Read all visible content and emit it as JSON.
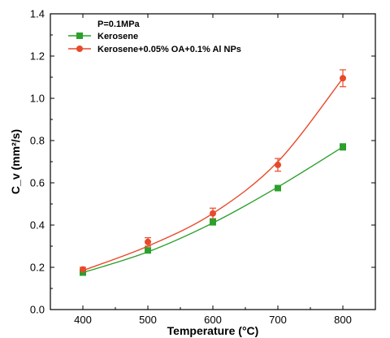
{
  "chart_data": {
    "type": "scatter",
    "xlabel": "Temperature (°C)",
    "ylabel": "C_v (mm²/s)",
    "xlim": [
      350,
      850
    ],
    "ylim": [
      0.0,
      1.4
    ],
    "x_ticks": [
      400,
      500,
      600,
      700,
      800
    ],
    "y_ticks": [
      0.0,
      0.2,
      0.4,
      0.6,
      0.8,
      1.0,
      1.2,
      1.4
    ],
    "grid": false,
    "legend_position": "top-left",
    "legend_title": "P=0.1MPa",
    "series": [
      {
        "name": "Kerosene",
        "color": "#2ca02c",
        "marker": "square",
        "x": [
          400,
          500,
          600,
          700,
          800
        ],
        "y": [
          0.175,
          0.28,
          0.415,
          0.575,
          0.77
        ],
        "error": [
          0.01,
          0.01,
          0.015,
          0.012,
          0.015
        ],
        "fit": [
          0.175,
          0.273,
          0.41,
          0.58,
          0.77
        ]
      },
      {
        "name": "Kerosene+0.05% OA+0.1% Al NPs",
        "color": "#e8492a",
        "marker": "circle",
        "x": [
          400,
          500,
          600,
          700,
          800
        ],
        "y": [
          0.19,
          0.32,
          0.455,
          0.685,
          1.095
        ],
        "error": [
          0.01,
          0.02,
          0.025,
          0.03,
          0.04
        ],
        "fit": [
          0.185,
          0.3,
          0.455,
          0.7,
          1.095
        ]
      }
    ]
  }
}
